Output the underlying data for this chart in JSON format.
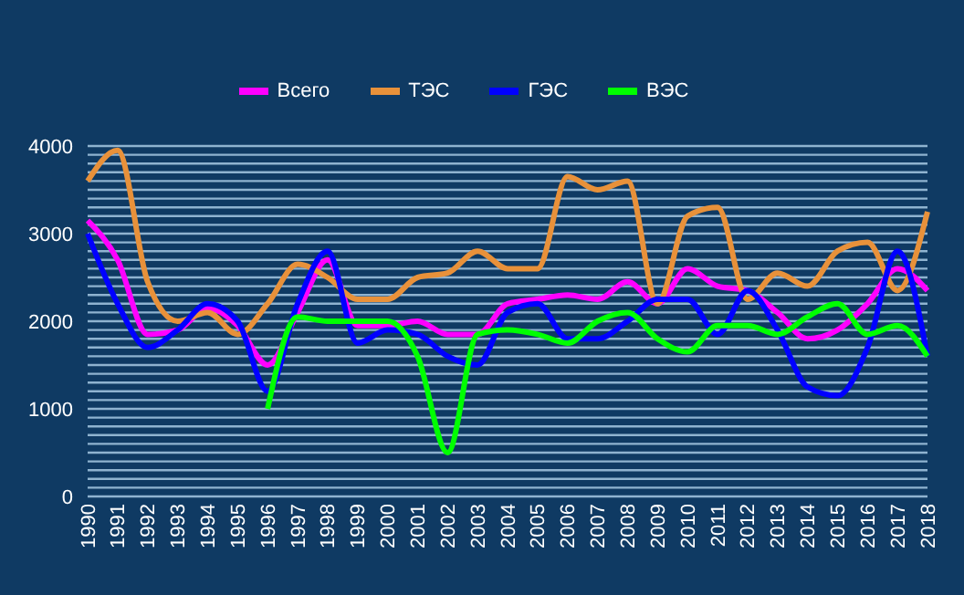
{
  "chart_data": {
    "type": "line",
    "categories": [
      "1990",
      "1991",
      "1992",
      "1993",
      "1994",
      "1995",
      "1996",
      "1997",
      "1998",
      "1999",
      "2000",
      "2001",
      "2002",
      "2003",
      "2004",
      "2005",
      "2006",
      "2007",
      "2008",
      "2009",
      "2010",
      "2011",
      "2012",
      "2013",
      "2014",
      "2015",
      "2016",
      "2017",
      "2018"
    ],
    "series": [
      {
        "name": "Всего",
        "color": "#ff00ff",
        "values": [
          3150,
          2700,
          1850,
          1900,
          2150,
          1950,
          1500,
          2100,
          2700,
          1950,
          1950,
          2000,
          1850,
          1850,
          2200,
          2250,
          2300,
          2250,
          2450,
          2200,
          2600,
          2400,
          2350,
          2100,
          1800,
          1900,
          2200,
          2600,
          2350
        ]
      },
      {
        "name": "ТЭС",
        "color": "#e8913a",
        "values": [
          3600,
          3950,
          2450,
          2000,
          2100,
          1850,
          2200,
          2650,
          2500,
          2250,
          2250,
          2500,
          2550,
          2800,
          2600,
          2600,
          3650,
          3500,
          3600,
          2200,
          3200,
          3300,
          2250,
          2550,
          2400,
          2800,
          2900,
          2350,
          3250
        ]
      },
      {
        "name": "ГЭС",
        "color": "#0000ff",
        "values": [
          3000,
          2200,
          1700,
          1900,
          2200,
          2000,
          1200,
          2200,
          2800,
          1750,
          1900,
          1850,
          1600,
          1500,
          2100,
          2200,
          1800,
          1800,
          2000,
          2250,
          2250,
          1850,
          2350,
          1900,
          1250,
          1150,
          1700,
          2800,
          1600
        ]
      },
      {
        "name": "ВЭС",
        "color": "#00ff00",
        "values": [
          null,
          null,
          null,
          null,
          null,
          null,
          1000,
          2050,
          2000,
          2000,
          2000,
          1600,
          500,
          1850,
          1900,
          1850,
          1750,
          2000,
          2100,
          1800,
          1650,
          1950,
          1950,
          1850,
          2050,
          2200,
          1850,
          1950,
          1600
        ]
      }
    ],
    "ylim": [
      0,
      4000
    ],
    "yticks": [
      0,
      {
        "value": 100,
        "label": null
      },
      {
        "value": 200,
        "label": null
      },
      {
        "value": 300,
        "label": null
      },
      {
        "value": 400,
        "label": null
      },
      {
        "value": 500,
        "label": null
      },
      {
        "value": 600,
        "label": null
      },
      {
        "value": 700,
        "label": null
      },
      {
        "value": 800,
        "label": null
      },
      {
        "value": 900,
        "label": null
      },
      1000,
      {
        "value": 1100,
        "label": null
      },
      {
        "value": 1200,
        "label": null
      },
      {
        "value": 1300,
        "label": null
      },
      {
        "value": 1400,
        "label": null
      },
      {
        "value": 1500,
        "label": null
      },
      {
        "value": 1600,
        "label": null
      },
      {
        "value": 1700,
        "label": null
      },
      {
        "value": 1800,
        "label": null
      },
      {
        "value": 1900,
        "label": null
      },
      2000,
      {
        "value": 2100,
        "label": null
      },
      {
        "value": 2200,
        "label": null
      },
      {
        "value": 2300,
        "label": null
      },
      {
        "value": 2400,
        "label": null
      },
      {
        "value": 2500,
        "label": null
      },
      {
        "value": 2600,
        "label": null
      },
      {
        "value": 2700,
        "label": null
      },
      {
        "value": 2800,
        "label": null
      },
      {
        "value": 2900,
        "label": null
      },
      3000,
      {
        "value": 3100,
        "label": null
      },
      {
        "value": 3200,
        "label": null
      },
      {
        "value": 3300,
        "label": null
      },
      {
        "value": 3400,
        "label": null
      },
      {
        "value": 3500,
        "label": null
      },
      {
        "value": 3600,
        "label": null
      },
      {
        "value": 3700,
        "label": null
      },
      {
        "value": 3800,
        "label": null
      },
      {
        "value": 3900,
        "label": null
      },
      4000
    ],
    "grid": "y",
    "legend": "top",
    "marker": "none",
    "line_style": "solid"
  }
}
